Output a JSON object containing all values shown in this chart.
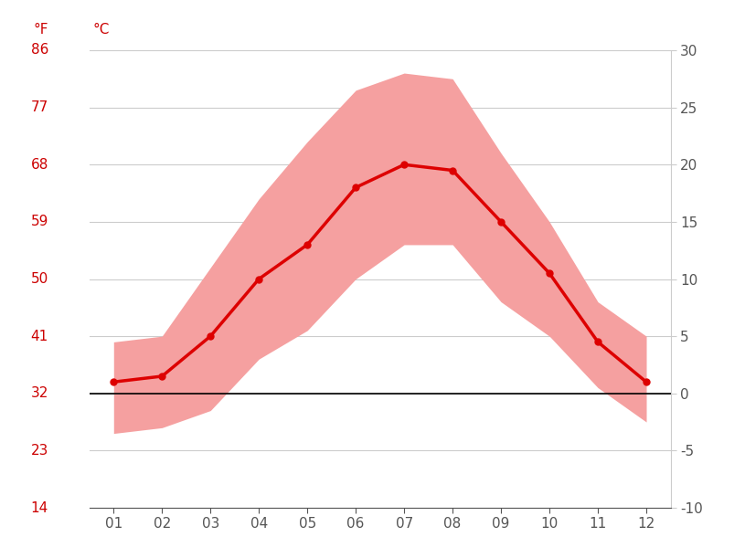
{
  "months": [
    1,
    2,
    3,
    4,
    5,
    6,
    7,
    8,
    9,
    10,
    11,
    12
  ],
  "month_labels": [
    "01",
    "02",
    "03",
    "04",
    "05",
    "06",
    "07",
    "08",
    "09",
    "10",
    "11",
    "12"
  ],
  "avg_temp": [
    1.0,
    1.5,
    5.0,
    10.0,
    13.0,
    18.0,
    20.0,
    19.5,
    15.0,
    10.5,
    4.5,
    1.0
  ],
  "max_temp": [
    4.5,
    5.0,
    11.0,
    17.0,
    22.0,
    26.5,
    28.0,
    27.5,
    21.0,
    15.0,
    8.0,
    5.0
  ],
  "min_temp": [
    -3.5,
    -3.0,
    -1.5,
    3.0,
    5.5,
    10.0,
    13.0,
    13.0,
    8.0,
    5.0,
    0.5,
    -2.5
  ],
  "line_color": "#dd0000",
  "fill_color": "#f5a0a0",
  "zero_line_color": "#000000",
  "grid_color": "#cccccc",
  "background_color": "#ffffff",
  "tick_color": "#555555",
  "label_color": "#cc0000",
  "ylim_c": [
    -10,
    30
  ],
  "yticks_c": [
    -10,
    -5,
    0,
    5,
    10,
    15,
    20,
    25,
    30
  ],
  "yticks_f": [
    14,
    23,
    32,
    41,
    50,
    59,
    68,
    77,
    86
  ],
  "ylabel_c": "°C",
  "ylabel_f": "°F",
  "figsize": [
    8.15,
    6.11
  ],
  "dpi": 100
}
